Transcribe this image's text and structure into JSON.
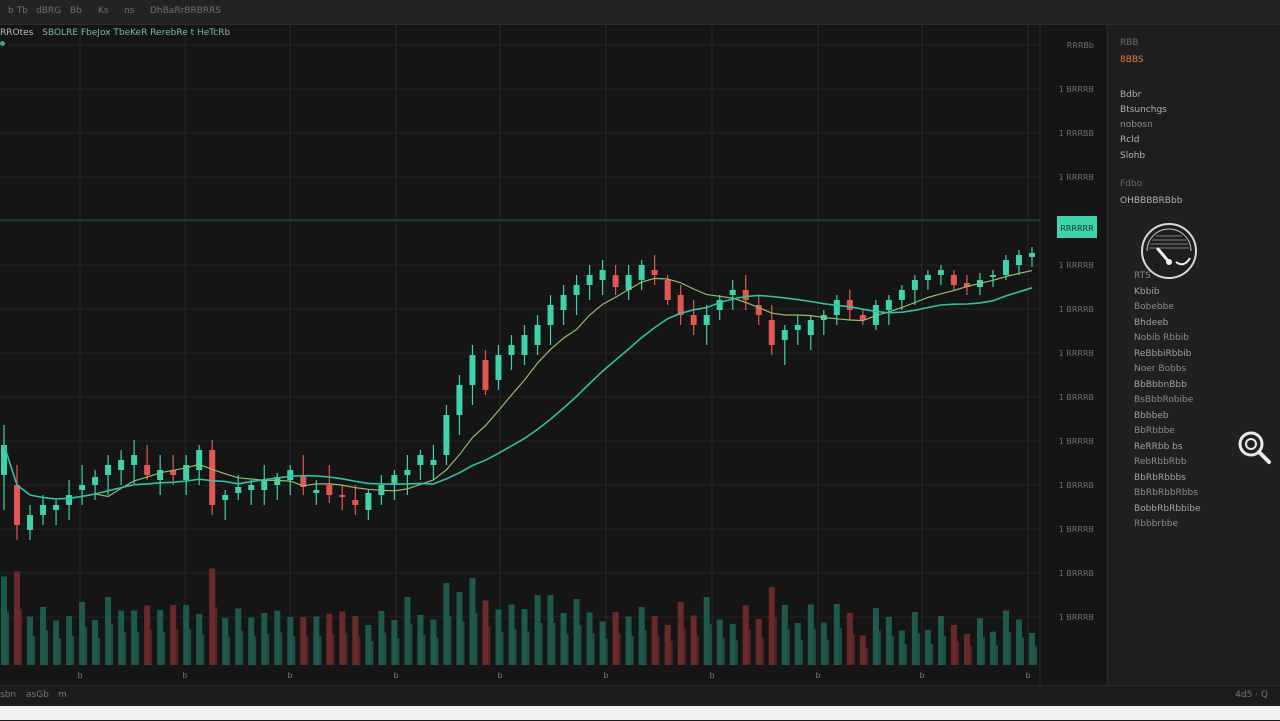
{
  "topbar": {
    "items": [
      "b Tb",
      "dBRG",
      "Bb",
      "Ks",
      "ns",
      "DhBaRrBRBRRS"
    ]
  },
  "legend": {
    "symbol": "RROtes",
    "description": "SBOLRE FbeJox TbeKeR RerebRe t HeTcRb"
  },
  "price_axis": {
    "labels": [
      "RRRBb",
      "1 BRRRB",
      "1 RRRBB",
      "1 RRRRB",
      "1 BRRRB",
      "1 RRRRB",
      "1 BRRRB",
      "1 RRRRB",
      "1 BRRRB",
      "1 BRRRB",
      "1 BRRRB",
      "1 BRRRB",
      "1 BRRRB",
      "1 BRRRB"
    ],
    "current": "RRRRRR"
  },
  "time_axis": {
    "labels": [
      "b",
      "b",
      "b",
      "b",
      "b",
      "b",
      "b",
      "b",
      "b",
      "b"
    ]
  },
  "bottombar": {
    "items": [
      "sbn",
      "asGb",
      "m"
    ],
    "right": "4d5 · Q"
  },
  "sidebar": {
    "header": "RBB",
    "price": "8BBS",
    "tools": [
      "Bdbr",
      "Btsunchgs",
      "nobosn",
      "Rcld",
      "Slohb"
    ],
    "section_label": "Fdbo",
    "section_value": "OHBBBBRBbb",
    "list": [
      "RTS",
      "Kbbib",
      "Bobebbe",
      "Bhdeeb",
      "Nobib Rbbib",
      "ReBbbiRbbib",
      "Noer Bobbs",
      "BbBbbnBbb",
      "BsBbbRobibe",
      "Bbbbeb",
      "BbRbbbe",
      "ReRRbb bs",
      "RebRbbRbb",
      "BbRbRbbbs",
      "BbRbRbbRbbs",
      "BobbRbRbbibe",
      "Rbbbrbbe"
    ]
  },
  "colors": {
    "up": "#3ed3aa",
    "down": "#e0584f",
    "ma_fast": "#8fbf6e",
    "ma_slow": "#2ec2a0",
    "price_tag": "#3ed3aa",
    "sidebar_price": "#e07b45"
  },
  "icons": {
    "gauge": "gauge-icon",
    "zoom": "zoom-in-icon"
  },
  "chart_data": {
    "type": "candlestick",
    "candles": [
      [
        0,
        450,
        400,
        485,
        420
      ],
      [
        1,
        460,
        440,
        515,
        500
      ],
      [
        2,
        505,
        480,
        515,
        490
      ],
      [
        3,
        490,
        470,
        500,
        480
      ],
      [
        4,
        485,
        475,
        500,
        480
      ],
      [
        5,
        480,
        455,
        495,
        470
      ],
      [
        6,
        465,
        440,
        480,
        460
      ],
      [
        7,
        460,
        445,
        475,
        452
      ],
      [
        8,
        450,
        430,
        470,
        440
      ],
      [
        9,
        445,
        425,
        460,
        435
      ],
      [
        10,
        440,
        415,
        460,
        430
      ],
      [
        11,
        440,
        420,
        455,
        450
      ],
      [
        12,
        455,
        430,
        470,
        445
      ],
      [
        13,
        445,
        430,
        460,
        450
      ],
      [
        14,
        455,
        430,
        470,
        440
      ],
      [
        15,
        445,
        420,
        460,
        425
      ],
      [
        16,
        425,
        415,
        490,
        480
      ],
      [
        17,
        475,
        465,
        495,
        470
      ],
      [
        18,
        468,
        450,
        475,
        462
      ],
      [
        19,
        465,
        455,
        480,
        460
      ],
      [
        20,
        465,
        440,
        480,
        455
      ],
      [
        21,
        460,
        448,
        475,
        452
      ],
      [
        22,
        455,
        440,
        470,
        445
      ],
      [
        23,
        450,
        430,
        470,
        462
      ],
      [
        24,
        468,
        455,
        480,
        465
      ],
      [
        25,
        460,
        440,
        478,
        470
      ],
      [
        26,
        470,
        460,
        485,
        472
      ],
      [
        27,
        475,
        460,
        490,
        480
      ],
      [
        28,
        485,
        465,
        495,
        468
      ],
      [
        29,
        470,
        450,
        480,
        460
      ],
      [
        30,
        460,
        445,
        475,
        450
      ],
      [
        31,
        450,
        430,
        470,
        445
      ],
      [
        32,
        440,
        425,
        455,
        430
      ],
      [
        33,
        440,
        420,
        455,
        435
      ],
      [
        34,
        430,
        380,
        440,
        390
      ],
      [
        35,
        390,
        350,
        410,
        360
      ],
      [
        36,
        360,
        320,
        380,
        330
      ],
      [
        37,
        335,
        325,
        370,
        365
      ],
      [
        38,
        355,
        320,
        365,
        330
      ],
      [
        39,
        330,
        310,
        345,
        320
      ],
      [
        40,
        330,
        300,
        340,
        310
      ],
      [
        41,
        320,
        290,
        330,
        300
      ],
      [
        42,
        300,
        270,
        320,
        280
      ],
      [
        43,
        285,
        260,
        300,
        270
      ],
      [
        44,
        270,
        250,
        290,
        260
      ],
      [
        45,
        260,
        240,
        275,
        250
      ],
      [
        46,
        255,
        235,
        270,
        245
      ],
      [
        47,
        250,
        240,
        270,
        262
      ],
      [
        48,
        265,
        240,
        275,
        250
      ],
      [
        49,
        255,
        235,
        265,
        240
      ],
      [
        50,
        245,
        230,
        260,
        250
      ],
      [
        51,
        255,
        250,
        280,
        275
      ],
      [
        52,
        270,
        260,
        300,
        290
      ],
      [
        53,
        290,
        275,
        310,
        300
      ],
      [
        54,
        300,
        280,
        320,
        290
      ],
      [
        55,
        285,
        270,
        295,
        275
      ],
      [
        56,
        270,
        255,
        285,
        265
      ],
      [
        57,
        265,
        250,
        285,
        275
      ],
      [
        58,
        280,
        270,
        300,
        290
      ],
      [
        59,
        295,
        280,
        330,
        320
      ],
      [
        60,
        315,
        300,
        340,
        305
      ],
      [
        61,
        305,
        290,
        320,
        300
      ],
      [
        62,
        310,
        290,
        325,
        295
      ],
      [
        63,
        295,
        285,
        310,
        290
      ],
      [
        64,
        290,
        270,
        300,
        275
      ],
      [
        65,
        275,
        265,
        295,
        285
      ],
      [
        66,
        290,
        285,
        300,
        295
      ],
      [
        67,
        300,
        275,
        305,
        280
      ],
      [
        68,
        285,
        270,
        300,
        275
      ],
      [
        69,
        275,
        260,
        285,
        265
      ],
      [
        70,
        265,
        250,
        280,
        255
      ],
      [
        71,
        255,
        245,
        265,
        250
      ],
      [
        72,
        250,
        240,
        260,
        245
      ],
      [
        73,
        250,
        245,
        265,
        260
      ],
      [
        74,
        258,
        250,
        270,
        262
      ],
      [
        75,
        262,
        248,
        270,
        255
      ],
      [
        76,
        252,
        245,
        262,
        250
      ],
      [
        77,
        250,
        230,
        255,
        235
      ],
      [
        78,
        240,
        225,
        250,
        230
      ],
      [
        79,
        232,
        222,
        242,
        228
      ]
    ]
  }
}
